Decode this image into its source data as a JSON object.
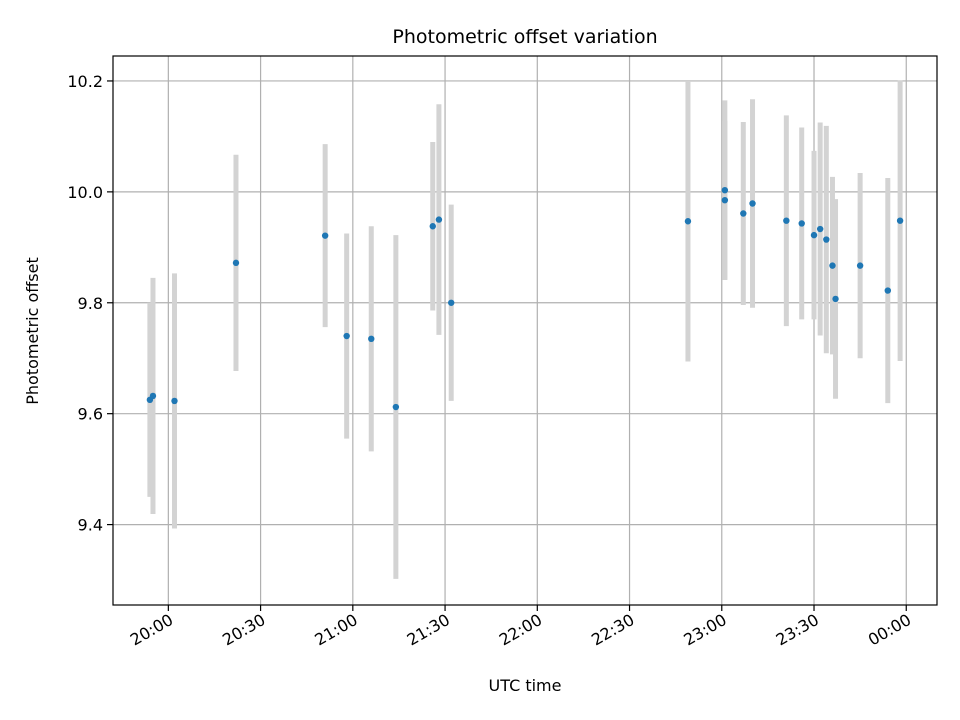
{
  "chart_data": {
    "type": "scatter",
    "title": "Photometric offset variation",
    "xlabel": "UTC time",
    "ylabel": "Photometric offset",
    "x_unit": "UTC time (HH:MM, evening into next day)",
    "xlim": [
      "19:42",
      "00:10"
    ],
    "ylim": [
      9.255,
      10.245
    ],
    "x_ticks": [
      "20:00",
      "20:30",
      "21:00",
      "21:30",
      "22:00",
      "22:30",
      "23:00",
      "23:30",
      "00:00"
    ],
    "y_ticks": [
      "9.4",
      "9.6",
      "9.8",
      "10.0",
      "10.2"
    ],
    "y_tick_values": [
      9.4,
      9.6,
      9.8,
      10.0,
      10.2
    ],
    "grid": true,
    "point_color": "#1f77b4",
    "errorbar_color": "#d3d3d3",
    "points": [
      {
        "x": "19:54",
        "y": 9.625,
        "err": 0.175
      },
      {
        "x": "19:55",
        "y": 9.632,
        "err": 0.213
      },
      {
        "x": "20:02",
        "y": 9.623,
        "err": 0.23
      },
      {
        "x": "20:22",
        "y": 9.872,
        "err": 0.195
      },
      {
        "x": "20:51",
        "y": 9.921,
        "err": 0.165
      },
      {
        "x": "20:58",
        "y": 9.74,
        "err": 0.185
      },
      {
        "x": "21:06",
        "y": 9.735,
        "err": 0.203
      },
      {
        "x": "21:14",
        "y": 9.612,
        "err": 0.31
      },
      {
        "x": "21:26",
        "y": 9.938,
        "err": 0.152
      },
      {
        "x": "21:28",
        "y": 9.95,
        "err": 0.208
      },
      {
        "x": "21:32",
        "y": 9.8,
        "err": 0.177
      },
      {
        "x": "22:49",
        "y": 9.947,
        "err": 0.253
      },
      {
        "x": "23:01",
        "y": 10.003,
        "err": 0.162
      },
      {
        "x": "23:01",
        "y": 9.985,
        "err": 0.143
      },
      {
        "x": "23:07",
        "y": 9.961,
        "err": 0.165
      },
      {
        "x": "23:10",
        "y": 9.979,
        "err": 0.188
      },
      {
        "x": "23:21",
        "y": 9.948,
        "err": 0.19
      },
      {
        "x": "23:26",
        "y": 9.943,
        "err": 0.173
      },
      {
        "x": "23:30",
        "y": 9.922,
        "err": 0.152
      },
      {
        "x": "23:32",
        "y": 9.933,
        "err": 0.192
      },
      {
        "x": "23:34",
        "y": 9.914,
        "err": 0.205
      },
      {
        "x": "23:36",
        "y": 9.867,
        "err": 0.16
      },
      {
        "x": "23:37",
        "y": 9.807,
        "err": 0.18
      },
      {
        "x": "23:45",
        "y": 9.867,
        "err": 0.167
      },
      {
        "x": "23:54",
        "y": 9.822,
        "err": 0.203
      },
      {
        "x": "23:58",
        "y": 9.948,
        "err": 0.253
      }
    ]
  }
}
